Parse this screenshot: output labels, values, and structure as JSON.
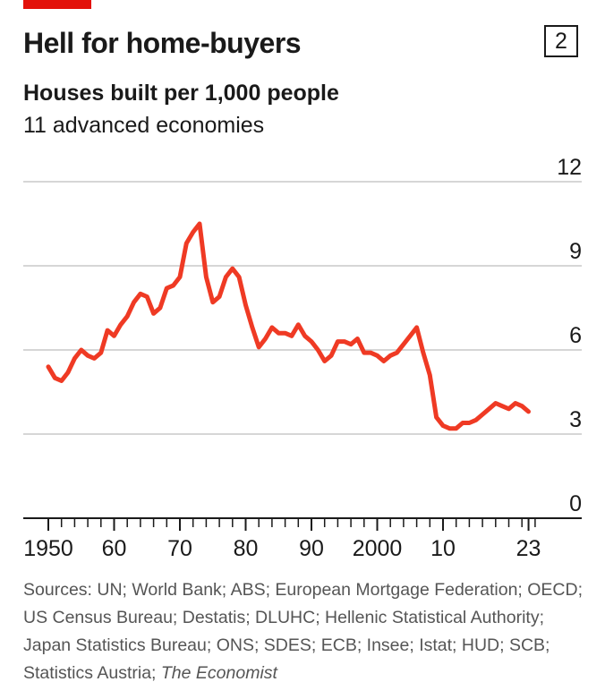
{
  "header": {
    "title": "Hell for home-buyers",
    "badge": "2",
    "subtitle": "Houses built per 1,000 people",
    "subsubtitle": "11 advanced economies"
  },
  "colors": {
    "accent": "#e3120b",
    "series": "#ef3a24",
    "grid": "#c8c8c8",
    "axis": "#1a1a1a"
  },
  "chart_data": {
    "type": "line",
    "title": "Houses built per 1,000 people",
    "subtitle": "11 advanced economies",
    "xlabel": "",
    "ylabel": "",
    "xlim": [
      1948,
      2030
    ],
    "ylim": [
      0,
      12
    ],
    "y_ticks": [
      0,
      3,
      6,
      9,
      12
    ],
    "y_tick_labels": [
      "0",
      "3",
      "6",
      "9",
      "12"
    ],
    "y_axis_side": "right",
    "x_ticks": [
      1950,
      1960,
      1970,
      1980,
      1990,
      2000,
      2010,
      2023
    ],
    "x_tick_labels": [
      "1950",
      "60",
      "70",
      "80",
      "90",
      "2000",
      "10",
      "23"
    ],
    "x_minor_ticks_every": 2,
    "grid": "horizontal",
    "x": [
      1950,
      1951,
      1952,
      1953,
      1954,
      1955,
      1956,
      1957,
      1958,
      1959,
      1960,
      1961,
      1962,
      1963,
      1964,
      1965,
      1966,
      1967,
      1968,
      1969,
      1970,
      1971,
      1972,
      1973,
      1974,
      1975,
      1976,
      1977,
      1978,
      1979,
      1980,
      1981,
      1982,
      1983,
      1984,
      1985,
      1986,
      1987,
      1988,
      1989,
      1990,
      1991,
      1992,
      1993,
      1994,
      1995,
      1996,
      1997,
      1998,
      1999,
      2000,
      2001,
      2002,
      2003,
      2004,
      2005,
      2006,
      2007,
      2008,
      2009,
      2010,
      2011,
      2012,
      2013,
      2014,
      2015,
      2016,
      2017,
      2018,
      2019,
      2020,
      2021,
      2022,
      2023
    ],
    "series": [
      {
        "values": [
          5.4,
          5.0,
          4.9,
          5.2,
          5.7,
          6.0,
          5.8,
          5.7,
          5.9,
          6.7,
          6.5,
          6.9,
          7.2,
          7.7,
          8.0,
          7.9,
          7.3,
          7.5,
          8.2,
          8.3,
          8.6,
          9.8,
          10.2,
          10.5,
          8.6,
          7.7,
          7.9,
          8.6,
          8.9,
          8.6,
          7.6,
          6.8,
          6.1,
          6.4,
          6.8,
          6.6,
          6.6,
          6.5,
          6.9,
          6.5,
          6.3,
          6.0,
          5.6,
          5.8,
          6.3,
          6.3,
          6.2,
          6.4,
          5.9,
          5.9,
          5.8,
          5.6,
          5.8,
          5.9,
          6.2,
          6.5,
          6.8,
          5.9,
          5.1,
          3.6,
          3.3,
          3.2,
          3.2,
          3.4,
          3.4,
          3.5,
          3.7,
          3.9,
          4.1,
          4.0,
          3.9,
          4.1,
          4.0,
          3.8
        ]
      }
    ]
  },
  "sources": {
    "text": "Sources: UN; World Bank; ABS; European Mortgage Federation; OECD; US Census Bureau; Destatis; DLUHC; Hellenic Statistical Authority; Japan Statistics Bureau; ONS; SDES; ECB; Insee; Istat; HUD; SCB; Statistics Austria;",
    "publication": "The Economist"
  }
}
